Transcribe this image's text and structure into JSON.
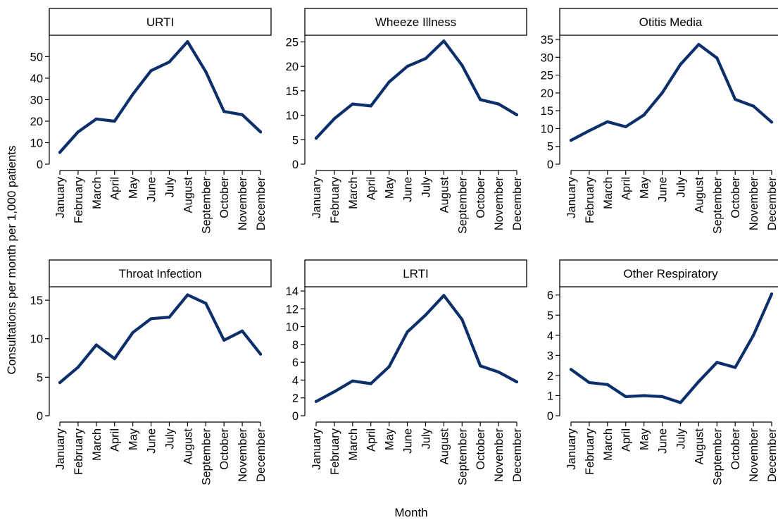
{
  "figure": {
    "ylabel": "Consultations per month per 1,000 patients",
    "xlabel": "Month"
  },
  "chart_data": [
    {
      "type": "line",
      "title": "URTI",
      "categories": [
        "January",
        "February",
        "March",
        "April",
        "May",
        "June",
        "July",
        "August",
        "September",
        "October",
        "November",
        "December"
      ],
      "values": [
        5.5,
        15,
        21,
        20,
        32.5,
        43.5,
        47.5,
        57,
        43,
        24.5,
        23,
        15
      ],
      "ylim": [
        0,
        58
      ],
      "yticks": [
        0,
        10,
        20,
        30,
        40,
        50
      ]
    },
    {
      "type": "line",
      "title": "Wheeze Illness",
      "categories": [
        "January",
        "February",
        "March",
        "April",
        "May",
        "June",
        "July",
        "August",
        "September",
        "October",
        "November",
        "December"
      ],
      "values": [
        5.3,
        9.3,
        12.3,
        11.9,
        16.8,
        20,
        21.6,
        25.2,
        20.2,
        13.2,
        12.3,
        10.1
      ],
      "ylim": [
        0,
        25.5
      ],
      "yticks": [
        0,
        5,
        10,
        15,
        20,
        25
      ]
    },
    {
      "type": "line",
      "title": "Otitis Media",
      "categories": [
        "January",
        "February",
        "March",
        "April",
        "May",
        "June",
        "July",
        "August",
        "September",
        "October",
        "November",
        "December"
      ],
      "values": [
        6.7,
        9.4,
        11.9,
        10.5,
        13.8,
        20,
        28,
        33.6,
        29.8,
        18.2,
        16.3,
        11.8
      ],
      "ylim": [
        0,
        35
      ],
      "yticks": [
        0,
        5,
        10,
        15,
        20,
        25,
        30,
        35
      ]
    },
    {
      "type": "line",
      "title": "Throat Infection",
      "categories": [
        "January",
        "February",
        "March",
        "April",
        "May",
        "June",
        "July",
        "August",
        "September",
        "October",
        "November",
        "December"
      ],
      "values": [
        4.3,
        6.3,
        9.2,
        7.4,
        10.8,
        12.6,
        12.8,
        15.7,
        14.6,
        9.8,
        11.0,
        8.0
      ],
      "ylim": [
        0,
        16.2
      ],
      "yticks": [
        0,
        5,
        10,
        15
      ]
    },
    {
      "type": "line",
      "title": "LRTI",
      "categories": [
        "January",
        "February",
        "March",
        "April",
        "May",
        "June",
        "July",
        "August",
        "September",
        "October",
        "November",
        "December"
      ],
      "values": [
        1.6,
        2.7,
        3.9,
        3.6,
        5.5,
        9.4,
        11.3,
        13.5,
        10.8,
        5.6,
        4.9,
        3.8
      ],
      "ylim": [
        0,
        14
      ],
      "yticks": [
        0,
        2,
        4,
        6,
        8,
        10,
        12,
        14
      ]
    },
    {
      "type": "line",
      "title": "Other Respiratory",
      "categories": [
        "January",
        "February",
        "March",
        "April",
        "May",
        "June",
        "July",
        "August",
        "September",
        "October",
        "November",
        "December"
      ],
      "values": [
        2.3,
        1.65,
        1.55,
        0.95,
        1.0,
        0.95,
        0.65,
        1.7,
        2.65,
        2.4,
        4.0,
        6.05
      ],
      "ylim": [
        0,
        6.2
      ],
      "yticks": [
        0,
        1,
        2,
        3,
        4,
        5,
        6
      ]
    }
  ]
}
